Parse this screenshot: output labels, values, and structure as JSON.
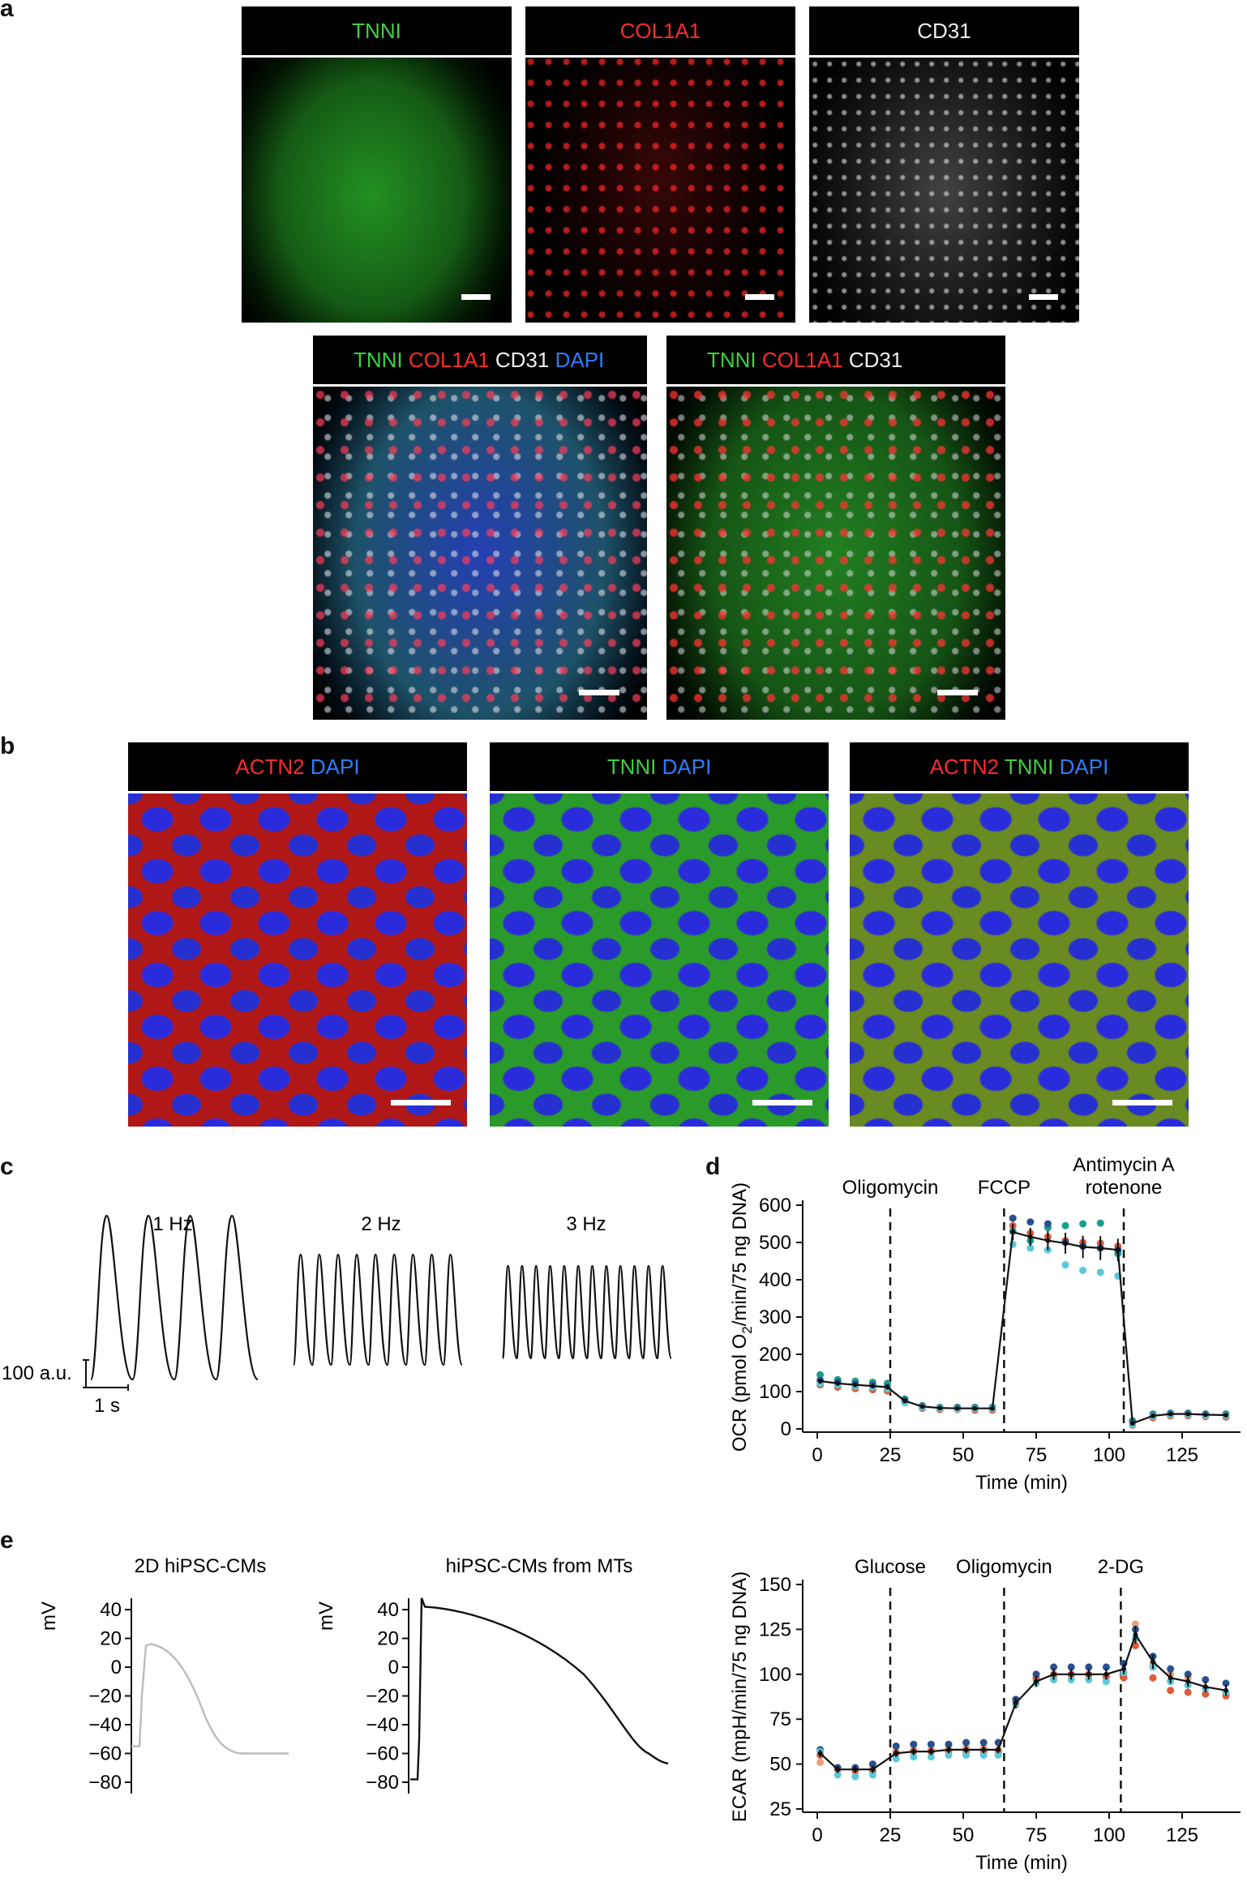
{
  "panel_labels": {
    "a": "a",
    "b": "b",
    "c": "c",
    "d": "d",
    "e": "e"
  },
  "colors": {
    "green": "#3fd13f",
    "red": "#ff2a2a",
    "white": "#f0f0f0",
    "blue": "#2d7dff"
  },
  "panel_a": {
    "top": [
      {
        "label": "TNNI",
        "color": "green"
      },
      {
        "label": "COL1A1",
        "color": "red"
      },
      {
        "label": "CD31",
        "color": "white"
      }
    ],
    "merged": [
      {
        "labels": [
          "TNNI",
          "COL1A1",
          "CD31",
          "DAPI"
        ]
      },
      {
        "labels": [
          "TNNI",
          "COL1A1",
          "CD31"
        ]
      }
    ]
  },
  "panel_b": [
    {
      "labels": [
        "ACTN2",
        "DAPI"
      ]
    },
    {
      "labels": [
        "TNNI",
        "DAPI"
      ]
    },
    {
      "labels": [
        "ACTN2",
        "TNNI",
        "DAPI"
      ]
    }
  ],
  "panel_c": {
    "traces": [
      {
        "label": "1 Hz"
      },
      {
        "label": "2 Hz"
      },
      {
        "label": "3 Hz"
      }
    ],
    "scale_y": "100 a.u.",
    "scale_x": "1 s"
  },
  "panel_e": {
    "traces": [
      {
        "title": "2D hiPSC-CMs",
        "ylabel": "mV",
        "ticks": [
          "40",
          "20",
          "0",
          "−20",
          "−40",
          "−60",
          "−80"
        ]
      },
      {
        "title": "hiPSC-CMs from MTs",
        "ylabel": "mV",
        "ticks": [
          "40",
          "20",
          "0",
          "−20",
          "−40",
          "−60",
          "−80"
        ]
      }
    ]
  },
  "chart_data": [
    {
      "type": "line",
      "id": "ocr",
      "ylabel_main": "OCR (pmol O",
      "ylabel_sub": "2",
      "ylabel_rest": "/min/75 ng DNA)",
      "xlabel": "Time (min)",
      "xlim": [
        -5,
        145
      ],
      "ylim": [
        0,
        600
      ],
      "xticks": [
        0,
        25,
        50,
        75,
        100,
        125
      ],
      "yticks": [
        0,
        100,
        200,
        300,
        400,
        500,
        600
      ],
      "injections": [
        {
          "x": 25,
          "label": [
            "Oligomycin"
          ]
        },
        {
          "x": 64,
          "label": [
            "FCCP"
          ]
        },
        {
          "x": 105,
          "label": [
            "Antimycin A",
            "rotenone"
          ]
        }
      ],
      "x": [
        1,
        7,
        13,
        19,
        24,
        30,
        36,
        42,
        48,
        54,
        60,
        67,
        73,
        79,
        85,
        91,
        97,
        103,
        108,
        115,
        121,
        127,
        133,
        140
      ],
      "mean": [
        128,
        122,
        118,
        115,
        112,
        75,
        60,
        56,
        55,
        55,
        55,
        528,
        515,
        505,
        498,
        488,
        485,
        480,
        15,
        35,
        40,
        40,
        38,
        37
      ],
      "err": [
        6,
        5,
        5,
        5,
        5,
        5,
        4,
        4,
        4,
        4,
        4,
        22,
        24,
        26,
        28,
        30,
        32,
        30,
        6,
        5,
        5,
        5,
        5,
        5
      ],
      "points": [
        {
          "color": "#e05a3a",
          "values": [
            118,
            112,
            108,
            105,
            102,
            72,
            55,
            52,
            52,
            50,
            50,
            545,
            525,
            515,
            505,
            500,
            498,
            490,
            10,
            30,
            35,
            35,
            33,
            32
          ]
        },
        {
          "color": "#1a9e8c",
          "values": [
            145,
            132,
            128,
            125,
            122,
            80,
            62,
            58,
            58,
            58,
            58,
            530,
            505,
            540,
            545,
            550,
            552,
            470,
            22,
            40,
            42,
            42,
            40,
            40
          ]
        },
        {
          "color": "#2a4f8f",
          "values": [
            130,
            125,
            120,
            117,
            112,
            76,
            61,
            56,
            55,
            56,
            55,
            565,
            555,
            550,
            500,
            490,
            485,
            480,
            16,
            36,
            41,
            41,
            39,
            38
          ]
        },
        {
          "color": "#5ac8d8",
          "values": [
            122,
            118,
            114,
            112,
            108,
            70,
            58,
            55,
            53,
            54,
            54,
            495,
            485,
            480,
            440,
            425,
            420,
            410,
            12,
            34,
            38,
            38,
            36,
            36
          ]
        }
      ]
    },
    {
      "type": "line",
      "id": "ecar",
      "ylabel_main": "ECAR (mpH/min/75 ng DNA)",
      "ylabel_sub": "",
      "ylabel_rest": "",
      "xlabel": "Time (min)",
      "xlim": [
        -5,
        145
      ],
      "ylim": [
        25,
        150
      ],
      "xticks": [
        0,
        25,
        50,
        75,
        100,
        125
      ],
      "yticks": [
        25,
        50,
        75,
        100,
        125,
        150
      ],
      "injections": [
        {
          "x": 25,
          "label": [
            "Glucose"
          ]
        },
        {
          "x": 64,
          "label": [
            "Oligomycin"
          ]
        },
        {
          "x": 104,
          "label": [
            "2-DG"
          ]
        }
      ],
      "x": [
        1,
        7,
        13,
        19,
        27,
        33,
        39,
        45,
        51,
        57,
        62,
        68,
        75,
        81,
        87,
        93,
        99,
        105,
        109,
        115,
        121,
        127,
        133,
        140
      ],
      "mean": [
        56,
        47,
        47,
        47,
        56,
        57,
        57,
        58,
        58,
        58,
        58,
        84,
        96,
        100,
        100,
        100,
        100,
        103,
        122,
        107,
        98,
        96,
        93,
        91
      ],
      "err": [
        2,
        2,
        2,
        2,
        2,
        2,
        2,
        2,
        2,
        2,
        2,
        3,
        3,
        3,
        3,
        3,
        3,
        3,
        5,
        4,
        3,
        3,
        3,
        3
      ],
      "points": [
        {
          "color": "#f0a070",
          "values": [
            51,
            47,
            48,
            48,
            57,
            58,
            58,
            59,
            59,
            59,
            58,
            83,
            97,
            99,
            99,
            99,
            98,
            99,
            128,
            106,
            100,
            98,
            92,
            89
          ]
        },
        {
          "color": "#e05a3a",
          "values": [
            55,
            47,
            46,
            46,
            56,
            57,
            57,
            57,
            57,
            57,
            57,
            84,
            98,
            100,
            100,
            100,
            99,
            98,
            116,
            98,
            91,
            90,
            89,
            88
          ]
        },
        {
          "color": "#2a4f8f",
          "values": [
            58,
            48,
            48,
            50,
            60,
            61,
            61,
            61,
            62,
            62,
            62,
            86,
            100,
            104,
            104,
            104,
            104,
            106,
            125,
            110,
            103,
            100,
            97,
            95
          ]
        },
        {
          "color": "#5ac8d8",
          "values": [
            57,
            44,
            43,
            44,
            53,
            54,
            54,
            55,
            55,
            55,
            55,
            83,
            95,
            97,
            97,
            97,
            96,
            101,
            120,
            104,
            96,
            94,
            92,
            90
          ]
        }
      ]
    }
  ]
}
